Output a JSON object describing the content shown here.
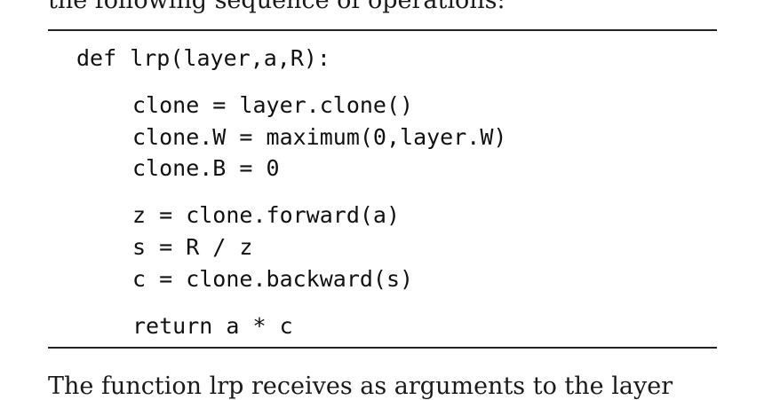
{
  "prose_top": "the following sequence of operations:",
  "code": {
    "def_line": "def lrp(layer,a,R):",
    "clone_line": "clone = layer.clone()",
    "clone_w_line": "clone.W = maximum(0,layer.W)",
    "clone_b_line": "clone.B = 0",
    "z_line": "z = clone.forward(a)",
    "s_line": "s = R / z",
    "c_line": "c = clone.backward(s)",
    "return_line": "return a * c"
  },
  "prose_bottom": "The function lrp receives as arguments to the layer"
}
